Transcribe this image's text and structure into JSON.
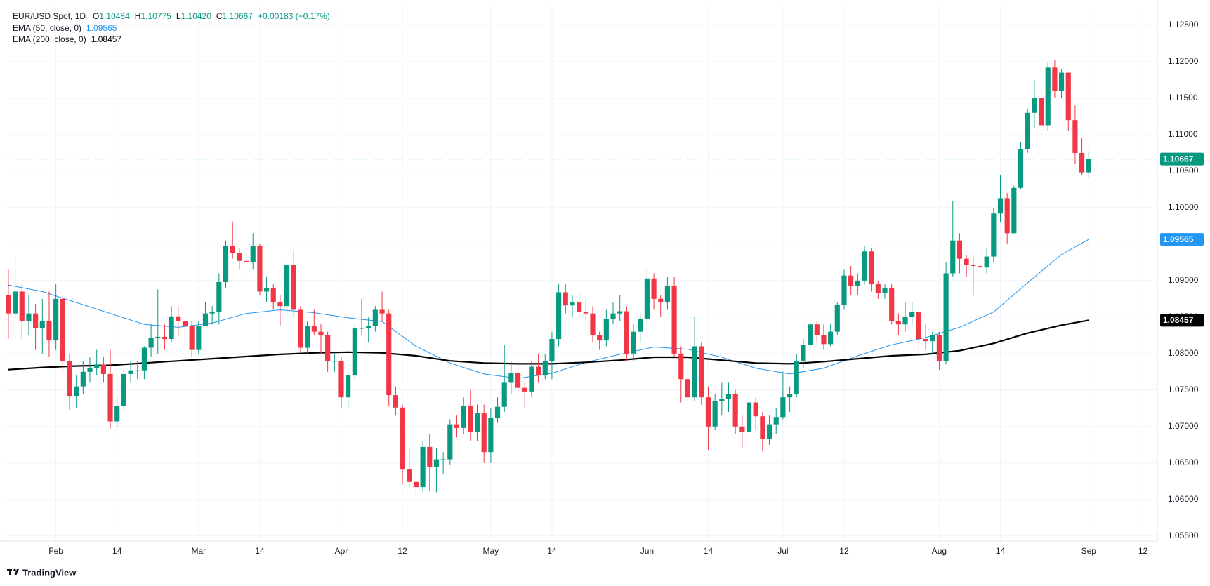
{
  "chart_data": {
    "type": "candlestick",
    "title": "EUR/USD Spot, 1D",
    "stats": [
      {
        "label": "O",
        "value": "1.10484"
      },
      {
        "label": "H",
        "value": "1.10775"
      },
      {
        "label": "L",
        "value": "1.10420"
      },
      {
        "label": "C",
        "value": "1.10667"
      }
    ],
    "change": "+0.00183 (+0.17%)",
    "up_color": "#089981",
    "down_color": "#f23645",
    "open": [
      1.088,
      1.0855,
      1.0885,
      1.0845,
      1.0855,
      1.0835,
      1.0845,
      1.0818,
      1.0875,
      1.079,
      1.0742,
      1.0755,
      1.0775,
      1.078,
      1.0785,
      1.0772,
      1.0707,
      1.0728,
      1.0772,
      1.0777,
      1.0777,
      1.0808,
      1.0821,
      1.0823,
      1.082,
      1.0851,
      1.0845,
      1.0838,
      1.0805,
      1.0838,
      1.0855,
      1.0857,
      1.0898,
      1.0948,
      1.0938,
      1.0927,
      1.0925,
      1.0948,
      1.0885,
      1.089,
      1.087,
      1.0865,
      1.0922,
      1.086,
      1.0808,
      1.0838,
      1.083,
      1.0825,
      1.079,
      1.079,
      1.074,
      1.077,
      1.0835,
      1.0835,
      1.0838,
      1.086,
      1.0855,
      1.0743,
      1.0726,
      1.0642,
      1.0624,
      1.0617,
      1.0672,
      1.0645,
      1.0655,
      1.0655,
      1.0703,
      1.0698,
      1.0728,
      1.0693,
      1.0718,
      1.0665,
      1.0712,
      1.0727,
      1.076,
      1.0773,
      1.0753,
      1.0748,
      1.0782,
      1.077,
      1.079,
      1.082,
      1.0884,
      1.0866,
      1.087,
      1.0857,
      1.0855,
      1.0825,
      1.0818,
      1.0847,
      1.0855,
      1.0858,
      1.08,
      1.083,
      1.0848,
      1.0903,
      1.0875,
      1.087,
      1.0893,
      1.08,
      1.0765,
      1.074,
      1.081,
      1.074,
      1.07,
      1.0735,
      1.0738,
      1.0745,
      1.07,
      1.0693,
      1.0733,
      1.0714,
      1.0683,
      1.0703,
      1.0713,
      1.074,
      1.0745,
      1.079,
      1.0812,
      1.084,
      1.0825,
      1.0813,
      1.083,
      1.0867,
      1.0907,
      1.0893,
      1.09,
      1.094,
      1.0895,
      1.0883,
      1.089,
      1.0845,
      1.084,
      1.085,
      1.0857,
      1.082,
      1.0817,
      1.0825,
      1.079,
      1.091,
      1.0955,
      1.093,
      1.0922,
      1.092,
      1.0918,
      1.0933,
      1.0992,
      1.1013,
      1.0965,
      1.1027,
      1.108,
      1.113,
      1.115,
      1.1113,
      1.1192,
      1.116,
      1.1185,
      1.112,
      1.1075,
      1.10484
    ],
    "high": [
      1.0915,
      1.0932,
      1.0895,
      1.088,
      1.0868,
      1.0875,
      1.0885,
      1.0895,
      1.088,
      1.08,
      1.077,
      1.079,
      1.0795,
      1.0805,
      1.0795,
      1.0805,
      1.074,
      1.078,
      1.079,
      1.079,
      1.081,
      1.084,
      1.0888,
      1.084,
      1.0865,
      1.0865,
      1.0855,
      1.0845,
      1.0845,
      1.087,
      1.0865,
      1.091,
      1.0955,
      1.0981,
      1.0945,
      1.094,
      1.0965,
      1.095,
      1.0905,
      1.0895,
      1.088,
      1.0925,
      1.0942,
      1.0865,
      1.0845,
      1.086,
      1.084,
      1.083,
      1.08,
      1.0795,
      1.0775,
      1.084,
      1.0875,
      1.085,
      1.0865,
      1.0885,
      1.086,
      1.0755,
      1.073,
      1.067,
      1.063,
      1.068,
      1.069,
      1.067,
      1.0665,
      1.071,
      1.0715,
      1.074,
      1.075,
      1.073,
      1.073,
      1.0725,
      1.074,
      1.0812,
      1.079,
      1.0785,
      1.076,
      1.079,
      1.08,
      1.08,
      1.083,
      1.0895,
      1.0895,
      1.088,
      1.0885,
      1.0875,
      1.0865,
      1.083,
      1.086,
      1.087,
      1.088,
      1.0865,
      1.084,
      1.0855,
      1.0915,
      1.091,
      1.088,
      1.0905,
      1.0905,
      1.081,
      1.078,
      1.085,
      1.0815,
      1.0755,
      1.0745,
      1.076,
      1.076,
      1.075,
      1.0715,
      1.0745,
      1.074,
      1.072,
      1.0715,
      1.0725,
      1.0775,
      1.0755,
      1.08,
      1.082,
      1.0845,
      1.0845,
      1.084,
      1.084,
      1.087,
      1.0915,
      1.092,
      1.091,
      1.0948,
      1.0945,
      1.09,
      1.0895,
      1.0895,
      1.0855,
      1.087,
      1.087,
      1.086,
      1.084,
      1.083,
      1.083,
      1.0925,
      1.1009,
      1.0965,
      1.0935,
      1.0935,
      1.093,
      1.0945,
      1.1,
      1.1045,
      1.102,
      1.103,
      1.109,
      1.1135,
      1.1175,
      1.116,
      1.12,
      1.1202,
      1.119,
      1.1185,
      1.114,
      1.1095,
      1.10775
    ],
    "low": [
      1.082,
      1.0845,
      1.082,
      1.0825,
      1.0805,
      1.08,
      1.0795,
      1.0805,
      1.0775,
      1.0723,
      1.0725,
      1.0745,
      1.076,
      1.077,
      1.076,
      1.0696,
      1.07,
      1.072,
      1.076,
      1.0765,
      1.0765,
      1.0795,
      1.08,
      1.0805,
      1.0815,
      1.0825,
      1.082,
      1.0795,
      1.08,
      1.084,
      1.084,
      1.084,
      1.089,
      1.093,
      1.0915,
      1.0905,
      1.0915,
      1.088,
      1.087,
      1.086,
      1.0838,
      1.085,
      1.085,
      1.0802,
      1.08,
      1.0825,
      1.08,
      1.0775,
      1.0775,
      1.0725,
      1.0725,
      1.0765,
      1.0825,
      1.0815,
      1.083,
      1.0845,
      1.0728,
      1.0715,
      1.0622,
      1.0615,
      1.0602,
      1.061,
      1.0612,
      1.061,
      1.0635,
      1.0648,
      1.0685,
      1.069,
      1.068,
      1.068,
      1.065,
      1.065,
      1.0705,
      1.072,
      1.0745,
      1.0745,
      1.0725,
      1.074,
      1.076,
      1.0765,
      1.0765,
      1.081,
      1.0855,
      1.085,
      1.085,
      1.0845,
      1.0815,
      1.0805,
      1.081,
      1.084,
      1.0845,
      1.079,
      1.079,
      1.0815,
      1.084,
      1.086,
      1.085,
      1.086,
      1.0795,
      1.0733,
      1.0735,
      1.0735,
      1.073,
      1.0668,
      1.0695,
      1.0715,
      1.072,
      1.069,
      1.067,
      1.069,
      1.0695,
      1.0666,
      1.0675,
      1.069,
      1.071,
      1.072,
      1.074,
      1.078,
      1.0805,
      1.0815,
      1.0805,
      1.081,
      1.0825,
      1.086,
      1.088,
      1.088,
      1.0895,
      1.0885,
      1.0875,
      1.0875,
      1.084,
      1.0825,
      1.083,
      1.084,
      1.08,
      1.0805,
      1.08,
      1.0778,
      1.0785,
      1.0905,
      1.091,
      1.0905,
      1.088,
      1.0905,
      1.091,
      1.0925,
      1.098,
      1.095,
      1.0965,
      1.1025,
      1.1075,
      1.111,
      1.11,
      1.1105,
      1.115,
      1.115,
      1.1105,
      1.106,
      1.1045,
      1.1042
    ],
    "close": [
      1.0855,
      1.0885,
      1.0845,
      1.0855,
      1.0835,
      1.0845,
      1.0818,
      1.0875,
      1.079,
      1.0742,
      1.0755,
      1.0775,
      1.078,
      1.0785,
      1.0772,
      1.0707,
      1.0728,
      1.0772,
      1.0777,
      1.0777,
      1.0808,
      1.0821,
      1.0823,
      1.082,
      1.0851,
      1.0845,
      1.0838,
      1.0805,
      1.0838,
      1.0855,
      1.0857,
      1.0898,
      1.0948,
      1.0938,
      1.0927,
      1.0925,
      1.0948,
      1.0885,
      1.089,
      1.087,
      1.0865,
      1.0922,
      1.086,
      1.0808,
      1.0838,
      1.083,
      1.0825,
      1.079,
      1.079,
      1.074,
      1.077,
      1.0835,
      1.0835,
      1.0838,
      1.086,
      1.0855,
      1.0743,
      1.0726,
      1.0642,
      1.0624,
      1.0617,
      1.0672,
      1.0645,
      1.0655,
      1.0655,
      1.0703,
      1.0698,
      1.0728,
      1.0693,
      1.0718,
      1.0665,
      1.0712,
      1.0727,
      1.076,
      1.0773,
      1.0753,
      1.0748,
      1.0782,
      1.077,
      1.079,
      1.082,
      1.0884,
      1.0866,
      1.087,
      1.0857,
      1.0855,
      1.0825,
      1.0818,
      1.0847,
      1.0855,
      1.0858,
      1.08,
      1.083,
      1.0848,
      1.0903,
      1.0875,
      1.087,
      1.0893,
      1.08,
      1.0765,
      1.074,
      1.081,
      1.074,
      1.07,
      1.0735,
      1.0738,
      1.0745,
      1.07,
      1.0693,
      1.0733,
      1.0714,
      1.0683,
      1.0703,
      1.0713,
      1.074,
      1.0745,
      1.079,
      1.0812,
      1.084,
      1.0825,
      1.0813,
      1.083,
      1.0867,
      1.0907,
      1.0893,
      1.09,
      1.094,
      1.0895,
      1.0883,
      1.089,
      1.0845,
      1.084,
      1.085,
      1.0857,
      1.082,
      1.0817,
      1.0825,
      1.079,
      1.091,
      1.0955,
      1.093,
      1.0922,
      1.092,
      1.0918,
      1.0933,
      1.0992,
      1.1013,
      1.0965,
      1.1027,
      1.108,
      1.113,
      1.115,
      1.1113,
      1.1192,
      1.116,
      1.1185,
      1.112,
      1.1075,
      1.10484,
      1.10667
    ],
    "lines": [
      {
        "name": "EMA (50, close, 0)",
        "color": "#2196f3",
        "x": [
          0,
          5,
          10,
          15,
          20,
          25,
          30,
          35,
          40,
          45,
          50,
          55,
          60,
          65,
          70,
          75,
          80,
          85,
          90,
          95,
          100,
          105,
          110,
          115,
          120,
          125,
          130,
          135,
          140,
          145,
          150,
          155,
          159
        ],
        "values": [
          1.0894,
          1.0885,
          1.087,
          1.0855,
          1.084,
          1.0836,
          1.0842,
          1.0855,
          1.086,
          1.0856,
          1.0849,
          1.0844,
          1.081,
          1.0787,
          1.0772,
          1.0766,
          1.0773,
          1.0788,
          1.0799,
          1.0809,
          1.0806,
          1.0795,
          1.078,
          1.0772,
          1.078,
          1.0797,
          1.0812,
          1.0822,
          1.0836,
          1.0857,
          1.0897,
          1.0936,
          1.09565
        ]
      },
      {
        "name": "EMA (200, close, 0)",
        "color": "#000000",
        "x": [
          0,
          5,
          10,
          15,
          20,
          25,
          30,
          35,
          40,
          45,
          50,
          55,
          60,
          65,
          70,
          75,
          80,
          85,
          90,
          95,
          100,
          105,
          110,
          115,
          120,
          125,
          130,
          135,
          140,
          145,
          150,
          155,
          159
        ],
        "values": [
          1.0778,
          1.0781,
          1.0783,
          1.0784,
          1.0787,
          1.079,
          1.0793,
          1.0796,
          1.0799,
          1.0801,
          1.0802,
          1.0801,
          1.0797,
          1.079,
          1.0787,
          1.0786,
          1.0786,
          1.0788,
          1.0791,
          1.0795,
          1.0795,
          1.0791,
          1.0787,
          1.0786,
          1.0789,
          1.0793,
          1.0797,
          1.0799,
          1.0804,
          1.0814,
          1.0828,
          1.0839,
          1.08457
        ]
      }
    ],
    "xlim": [
      -0.3,
      169.1
    ],
    "xticks": [
      {
        "value": 7,
        "label": "Feb"
      },
      {
        "value": 16,
        "label": "14"
      },
      {
        "value": 28,
        "label": "Mar"
      },
      {
        "value": 37,
        "label": "14"
      },
      {
        "value": 49,
        "label": "Apr"
      },
      {
        "value": 58,
        "label": "12"
      },
      {
        "value": 71,
        "label": "May"
      },
      {
        "value": 80,
        "label": "14"
      },
      {
        "value": 94,
        "label": "Jun"
      },
      {
        "value": 103,
        "label": "14"
      },
      {
        "value": 114,
        "label": "Jul"
      },
      {
        "value": 123,
        "label": "12"
      },
      {
        "value": 137,
        "label": "Aug"
      },
      {
        "value": 146,
        "label": "14"
      },
      {
        "value": 159,
        "label": "Sep"
      },
      {
        "value": 167,
        "label": "12"
      }
    ],
    "ylim": [
      1.0543,
      1.1276
    ],
    "yticks": [
      {
        "value": 1.055,
        "label": "1.05500"
      },
      {
        "value": 1.06,
        "label": "1.06000"
      },
      {
        "value": 1.065,
        "label": "1.06500"
      },
      {
        "value": 1.07,
        "label": "1.07000"
      },
      {
        "value": 1.075,
        "label": "1.07500"
      },
      {
        "value": 1.08,
        "label": "1.08000"
      },
      {
        "value": 1.085,
        "label": "1.08500"
      },
      {
        "value": 1.09,
        "label": "1.09000"
      },
      {
        "value": 1.095,
        "label": "1.09500"
      },
      {
        "value": 1.1,
        "label": "1.10000"
      },
      {
        "value": 1.105,
        "label": "1.10500"
      },
      {
        "value": 1.11,
        "label": "1.11000"
      },
      {
        "value": 1.115,
        "label": "1.11500"
      },
      {
        "value": 1.12,
        "label": "1.12000"
      },
      {
        "value": 1.125,
        "label": "1.12500"
      }
    ],
    "grid": true,
    "watermark": "TradingView"
  }
}
